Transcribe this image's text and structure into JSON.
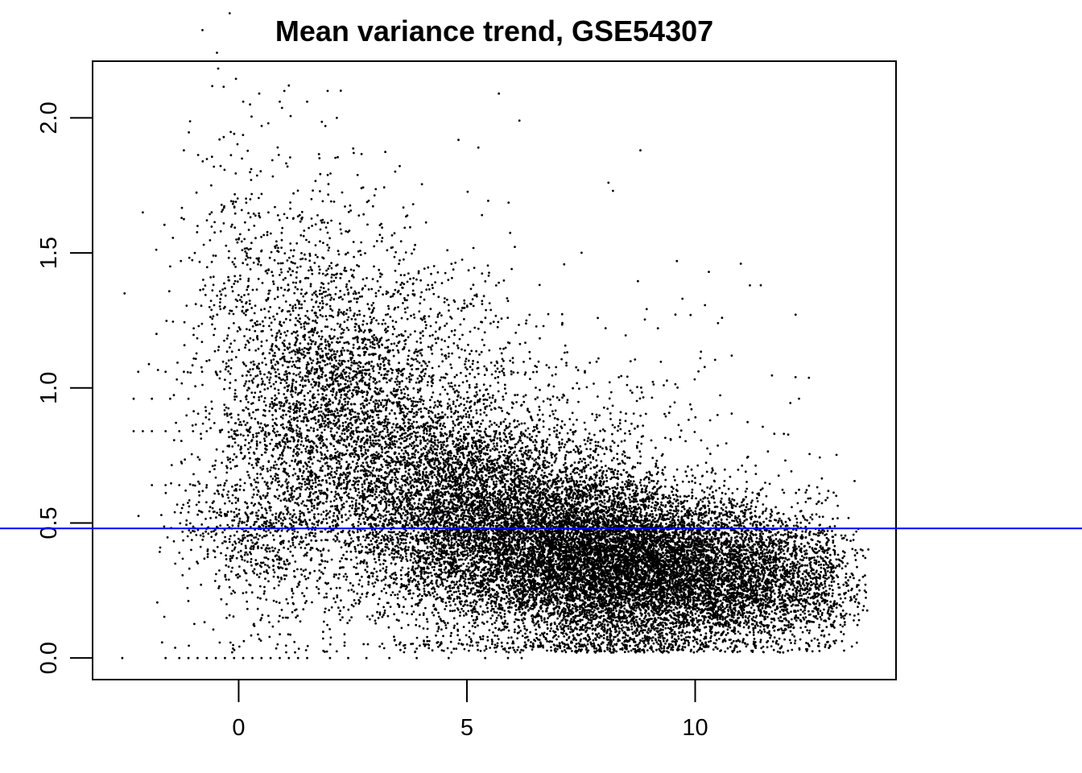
{
  "chart_data": {
    "type": "scatter",
    "title": "Mean variance trend, GSE54307",
    "xlabel": "",
    "ylabel": "",
    "xlim": [
      -3.2,
      14.4
    ],
    "ylim": [
      -0.08,
      2.21
    ],
    "x_ticks": [
      0,
      5,
      10
    ],
    "x_tick_labels": [
      "0",
      "5",
      "10"
    ],
    "y_ticks": [
      0.0,
      0.5,
      1.0,
      1.5,
      2.0
    ],
    "y_tick_labels": [
      "0.0",
      "0.5",
      "1.0",
      "1.5",
      "2.0"
    ],
    "grid": false,
    "point_color": "#000000",
    "reference_line": {
      "orientation": "horizontal",
      "y": 0.48,
      "color": "#0000ff"
    },
    "series": [
      {
        "points": [
          [
            -2.55,
            0.0
          ],
          [
            -1.6,
            0.0
          ],
          [
            -1.3,
            0.0
          ],
          [
            -1.1,
            0.0
          ],
          [
            -0.9,
            0.0
          ],
          [
            -0.7,
            0.0
          ],
          [
            -0.5,
            0.0
          ],
          [
            -0.3,
            0.0
          ],
          [
            -0.1,
            0.0
          ],
          [
            0.1,
            0.0
          ],
          [
            0.3,
            0.0
          ],
          [
            0.5,
            0.0
          ],
          [
            0.7,
            0.0
          ],
          [
            0.9,
            0.0
          ],
          [
            1.1,
            0.0
          ],
          [
            1.3,
            0.0
          ],
          [
            1.5,
            0.0
          ],
          [
            2.0,
            0.0
          ],
          [
            2.4,
            0.0
          ],
          [
            2.8,
            0.0
          ],
          [
            3.3,
            0.0
          ],
          [
            3.9,
            0.0
          ],
          [
            4.6,
            0.0
          ],
          [
            5.4,
            0.0
          ],
          [
            5.9,
            0.0
          ],
          [
            6.2,
            0.0
          ],
          [
            -2.3,
            0.84
          ],
          [
            -2.1,
            0.84
          ],
          [
            -1.9,
            0.84
          ],
          [
            -1.6,
            0.84
          ],
          [
            -1.3,
            0.84
          ],
          [
            -1.0,
            0.84
          ],
          [
            -0.7,
            0.84
          ],
          [
            -0.4,
            0.84
          ],
          [
            -0.1,
            0.84
          ],
          [
            0.2,
            0.84
          ],
          [
            0.5,
            0.84
          ],
          [
            -1.9,
            0.64
          ],
          [
            -1.6,
            0.64
          ],
          [
            -1.3,
            0.64
          ],
          [
            -1.0,
            0.64
          ],
          [
            -0.7,
            0.64
          ],
          [
            -0.4,
            0.64
          ],
          [
            -2.2,
            1.06
          ],
          [
            -1.6,
            1.06
          ],
          [
            -1.2,
            1.06
          ],
          [
            -0.8,
            1.06
          ],
          [
            -0.5,
            1.06
          ],
          [
            -1.4,
            0.54
          ],
          [
            -1.1,
            0.54
          ],
          [
            -0.8,
            0.54
          ],
          [
            -0.4,
            0.54
          ],
          [
            -0.1,
            0.54
          ],
          [
            0.3,
            0.54
          ],
          [
            -2.3,
            0.96
          ],
          [
            -1.9,
            0.96
          ],
          [
            -1.5,
            0.96
          ],
          [
            -1.1,
            0.96
          ],
          [
            -2.5,
            1.35
          ],
          [
            -2.1,
            1.65
          ],
          [
            -1.8,
            1.2
          ],
          [
            -1.5,
            1.45
          ],
          [
            -1.2,
            1.88
          ],
          [
            -0.9,
            1.6
          ],
          [
            -0.6,
            1.75
          ],
          [
            -0.3,
            1.3
          ],
          [
            0.0,
            1.55
          ],
          [
            0.1,
            2.06
          ],
          [
            0.25,
            2.05
          ],
          [
            0.45,
            2.09
          ],
          [
            0.65,
            1.98
          ],
          [
            0.9,
            2.06
          ],
          [
            1.0,
            2.1
          ],
          [
            1.1,
            2.12
          ],
          [
            1.5,
            2.06
          ],
          [
            1.9,
            1.97
          ],
          [
            1.95,
            2.1
          ],
          [
            2.15,
            2.0
          ],
          [
            5.25,
            1.89
          ],
          [
            5.7,
            2.09
          ],
          [
            6.15,
            1.99
          ],
          [
            8.8,
            1.88
          ],
          [
            8.1,
            1.76
          ],
          [
            8.2,
            1.73
          ],
          [
            9.6,
            1.47
          ],
          [
            10.3,
            1.43
          ],
          [
            11.0,
            1.46
          ],
          [
            11.2,
            1.38
          ],
          [
            9.9,
            1.27
          ],
          [
            10.5,
            1.24
          ],
          [
            10.8,
            1.12
          ],
          [
            12.2,
            1.04
          ],
          [
            13.3,
            0.28
          ],
          [
            13.6,
            0.25
          ],
          [
            13.2,
            0.15
          ],
          [
            13.5,
            0.38
          ]
        ],
        "clusters": [
          {
            "cx": 1.8,
            "cy": 1.05,
            "sx": 1.0,
            "sy": 0.33,
            "n": 1500
          },
          {
            "cx": 2.6,
            "cy": 0.82,
            "sx": 1.2,
            "sy": 0.28,
            "n": 1500
          },
          {
            "cx": 1.0,
            "cy": 0.72,
            "sx": 1.1,
            "sy": 0.35,
            "n": 900
          },
          {
            "cx": 4.2,
            "cy": 0.62,
            "sx": 1.1,
            "sy": 0.22,
            "n": 2000
          },
          {
            "cx": 5.6,
            "cy": 0.5,
            "sx": 1.3,
            "sy": 0.2,
            "n": 3200
          },
          {
            "cx": 7.2,
            "cy": 0.4,
            "sx": 1.4,
            "sy": 0.17,
            "n": 4200
          },
          {
            "cx": 8.5,
            "cy": 0.33,
            "sx": 1.3,
            "sy": 0.15,
            "n": 4000
          },
          {
            "cx": 10.0,
            "cy": 0.32,
            "sx": 1.2,
            "sy": 0.14,
            "n": 2800
          },
          {
            "cx": 11.6,
            "cy": 0.3,
            "sx": 0.95,
            "sy": 0.13,
            "n": 1300
          },
          {
            "cx": 12.7,
            "cy": 0.28,
            "sx": 0.55,
            "sy": 0.12,
            "n": 350
          },
          {
            "cx": 4.5,
            "cy": 1.2,
            "sx": 1.1,
            "sy": 0.2,
            "n": 300
          },
          {
            "cx": -0.1,
            "cy": 1.45,
            "sx": 0.6,
            "sy": 0.3,
            "n": 200
          },
          {
            "cx": 7.8,
            "cy": 0.9,
            "sx": 1.8,
            "sy": 0.22,
            "n": 250
          },
          {
            "cx": 0.3,
            "cy": 0.45,
            "sx": 0.8,
            "sy": 0.12,
            "n": 350
          }
        ]
      }
    ]
  }
}
